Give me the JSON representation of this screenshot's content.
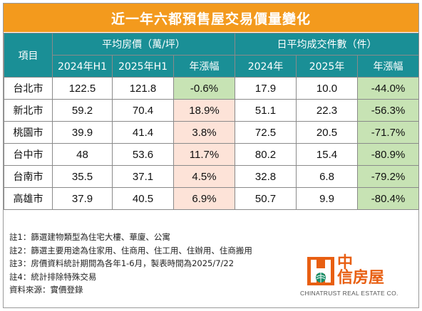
{
  "title": "近一年六都預售屋交易價量變化",
  "headers": {
    "item": "項目",
    "price_group": "平均房價（萬/坪）",
    "volume_group": "日平均成交件數（件）",
    "price_cols": [
      "2024年H1",
      "2025年H1",
      "年漲幅"
    ],
    "volume_cols": [
      "2024年",
      "2025年",
      "年漲幅"
    ]
  },
  "rows": [
    {
      "city": "台北市",
      "p2024": "122.5",
      "p2025": "121.8",
      "pchg": "-0.6%",
      "v2024": "17.9",
      "v2025": "10.0",
      "vchg": "-44.0%"
    },
    {
      "city": "新北市",
      "p2024": "59.2",
      "p2025": "70.4",
      "pchg": "18.9%",
      "v2024": "51.1",
      "v2025": "22.3",
      "vchg": "-56.3%"
    },
    {
      "city": "桃園市",
      "p2024": "39.9",
      "p2025": "41.4",
      "pchg": "3.8%",
      "v2024": "72.5",
      "v2025": "20.5",
      "vchg": "-71.7%"
    },
    {
      "city": "台中市",
      "p2024": "48",
      "p2025": "53.6",
      "pchg": "11.7%",
      "v2024": "80.2",
      "v2025": "15.4",
      "vchg": "-80.9%"
    },
    {
      "city": "台南市",
      "p2024": "35.5",
      "p2025": "37.1",
      "pchg": "4.5%",
      "v2024": "32.8",
      "v2025": "6.8",
      "vchg": "-79.2%"
    },
    {
      "city": "高雄市",
      "p2024": "37.9",
      "p2025": "40.5",
      "pchg": "6.9%",
      "v2024": "50.7",
      "v2025": "9.9",
      "vchg": "-80.4%"
    }
  ],
  "notes": [
    "註1：篩選建物類型為住宅大樓、華廈、公寓",
    "註2：篩選主要用途為住家用、住商用、住工用、住辦用、住商搬用",
    "註3：房價資料統計期間為各年1-6月，製表時間為2025/7/22",
    "註4：統計排除特殊交易",
    "資料來源：實價登錄"
  ],
  "logo": {
    "cn_line1": "中",
    "cn_line2": "信房屋",
    "en": "CHINATRUST REAL ESTATE CO."
  },
  "colors": {
    "title_bg": "#f39a1d",
    "header_bg": "#1a8f96",
    "increase_bg": "#fde3d8",
    "decrease_bg": "#c7e3b4",
    "logo": "#e85f12"
  }
}
